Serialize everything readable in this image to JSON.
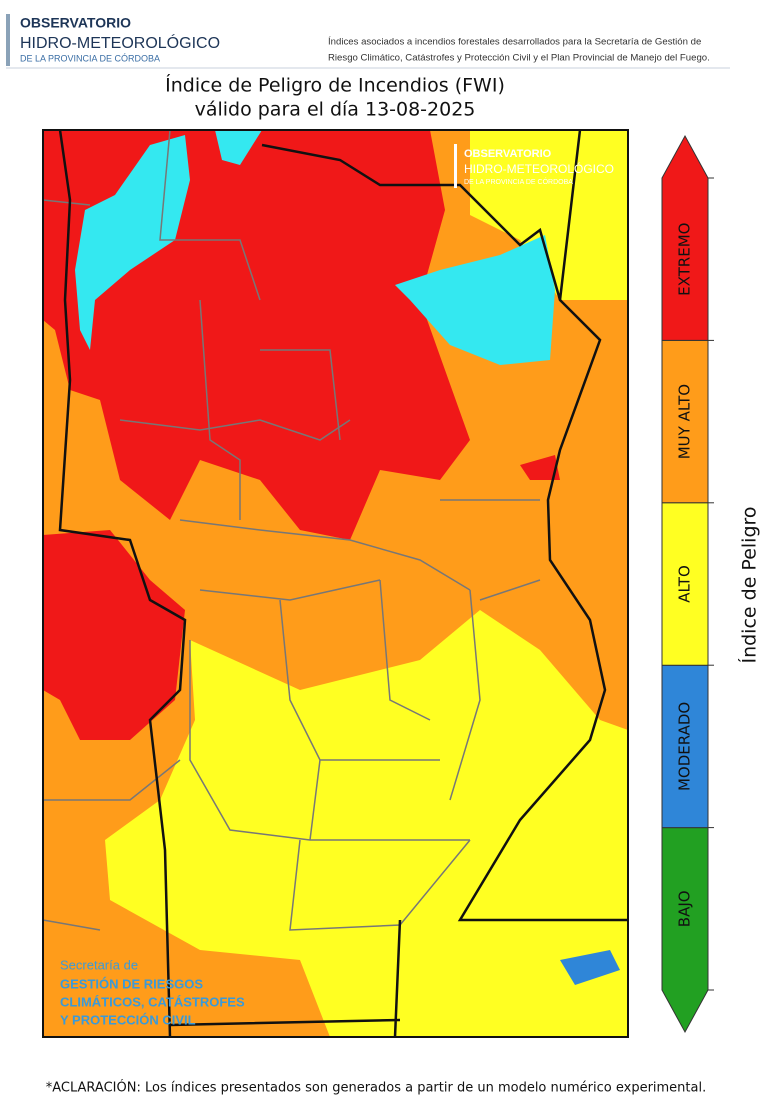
{
  "header": {
    "logo_line1": "OBSERVATORIO",
    "logo_line2": "HIDRO-METEOROLÓGICO",
    "logo_line3": "DE LA PROVINCIA DE CÓRDOBA",
    "description_line1": "Índices asociados a incendios forestales desarrollados para la Secretaría de Gestión de",
    "description_line2": "Riesgo Climático, Catástrofes y Protección Civil y el Plan Provincial de Manejo del Fuego."
  },
  "map": {
    "title": "Índice de Peligro de Incendios (FWI)",
    "subtitle": "válido para el día 13-08-2025",
    "watermark_line1": "OBSERVATORIO",
    "watermark_line2": "HIDRO-METEOROLÓGICO",
    "watermark_line3": "DE LA PROVINCIA DE CÓRDOBA",
    "agency_line1": "Secretaría de",
    "agency_line2": "GESTIÓN DE RIESGOS",
    "agency_line3": "CLIMÁTICOS, CATÁSTROFES",
    "agency_line4": "Y PROTECCIÓN CIVIL"
  },
  "legend": {
    "title": "Índice de Peligro",
    "classes": [
      {
        "label": "BAJO",
        "color": "#22a022"
      },
      {
        "label": "MODERADO",
        "color": "#2f86d8"
      },
      {
        "label": "ALTO",
        "color": "#ffff22"
      },
      {
        "label": "MUY ALTO",
        "color": "#ff9c1a"
      },
      {
        "label": "EXTREMO",
        "color": "#f01818"
      }
    ]
  },
  "footnote": "*ACLARACIÓN: Los índices presentados son generados a partir de un modelo numérico experimental."
}
